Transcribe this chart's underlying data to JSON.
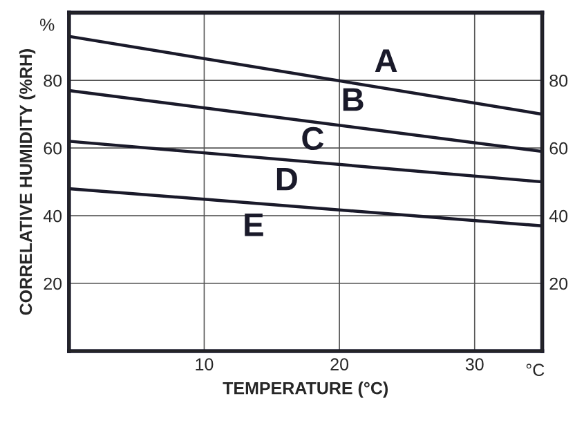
{
  "chart_data": {
    "type": "line",
    "xlabel": "TEMPERATURE (°C)",
    "ylabel": "CORRELATIVE HUMIDITY (%RH)",
    "x": [
      0,
      35
    ],
    "series": [
      {
        "color": "#1a1a2a",
        "values": [
          93,
          70
        ]
      },
      {
        "color": "#1a1a2a",
        "values": [
          77,
          59
        ]
      },
      {
        "color": "#1a1a2a",
        "values": [
          62,
          50
        ]
      },
      {
        "color": "#1a1a2a",
        "values": [
          48,
          37
        ]
      }
    ],
    "xlim": [
      0,
      35
    ],
    "xticks": [
      10,
      20,
      30
    ],
    "ylim": [
      0,
      100
    ],
    "yticks": [
      20,
      40,
      60,
      80
    ],
    "y2lim": [
      0,
      100
    ],
    "y2ticks": [
      20,
      40,
      60,
      80
    ],
    "grid": true,
    "legend": false,
    "marker": "none",
    "line_style": "solid",
    "annotations": [
      "%",
      "°C",
      "A",
      "B",
      "C",
      "D",
      "E"
    ]
  }
}
